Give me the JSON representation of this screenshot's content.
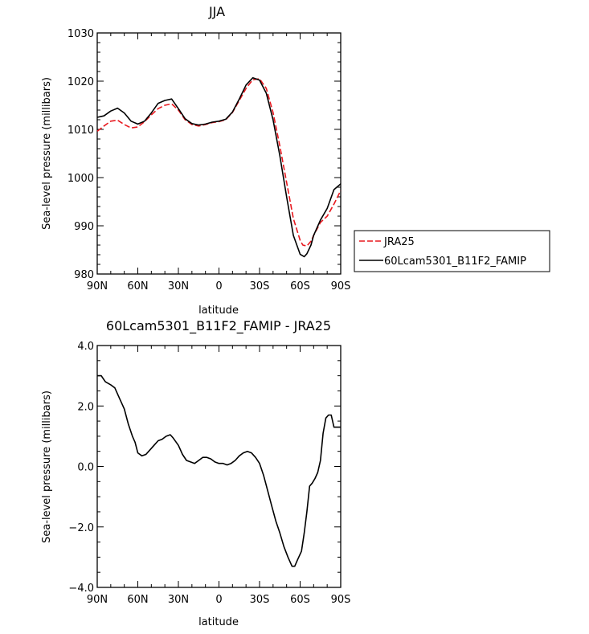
{
  "chart_data": [
    {
      "type": "line",
      "title": "JJA",
      "xlabel": "latitude",
      "ylabel": "Sea-level pressure (millibars)",
      "ylim": [
        980,
        1030
      ],
      "yticks": [
        980,
        990,
        1000,
        1010,
        1020,
        1030
      ],
      "ytick_labels": [
        "980",
        "990",
        "1000",
        "1010",
        "1020",
        "1030"
      ],
      "xlim": [
        90,
        -90
      ],
      "xticks": [
        90,
        60,
        30,
        0,
        -30,
        -60,
        -90
      ],
      "xtick_labels": [
        "90N",
        "60N",
        "30N",
        "0",
        "30S",
        "60S",
        "90S"
      ],
      "legend_position": "outside-right",
      "series": [
        {
          "name": "JRA25",
          "color": "#e8191f",
          "dash": "dashed",
          "x": [
            90,
            85,
            80,
            75,
            70,
            65,
            60,
            55,
            50,
            45,
            40,
            35,
            30,
            25,
            20,
            15,
            10,
            5,
            0,
            -5,
            -10,
            -15,
            -20,
            -25,
            -30,
            -35,
            -40,
            -45,
            -50,
            -55,
            -60,
            -62,
            -65,
            -68,
            -70,
            -75,
            -80,
            -85,
            -90
          ],
          "y": [
            1009.6,
            1010.7,
            1011.7,
            1011.9,
            1011.0,
            1010.3,
            1010.5,
            1011.6,
            1013.0,
            1014.3,
            1015.0,
            1015.3,
            1014.0,
            1012.0,
            1011.0,
            1010.7,
            1011.0,
            1011.4,
            1011.6,
            1012.0,
            1013.5,
            1016.0,
            1018.5,
            1020.3,
            1020.5,
            1018.5,
            1013.5,
            1006.5,
            999.0,
            991.5,
            987.0,
            986.0,
            985.8,
            986.8,
            988.0,
            990.7,
            992.0,
            994.5,
            997.3
          ]
        },
        {
          "name": "60Lcam5301_B11F2_FAMIP",
          "color": "#000000",
          "dash": "solid",
          "x": [
            90,
            85,
            80,
            75,
            70,
            65,
            60,
            55,
            50,
            45,
            40,
            35,
            30,
            25,
            20,
            15,
            10,
            5,
            0,
            -5,
            -10,
            -15,
            -20,
            -25,
            -30,
            -35,
            -40,
            -45,
            -50,
            -55,
            -60,
            -63,
            -65,
            -68,
            -70,
            -75,
            -80,
            -85,
            -90
          ],
          "y": [
            1012.5,
            1012.8,
            1013.8,
            1014.4,
            1013.4,
            1011.7,
            1011.1,
            1011.7,
            1013.4,
            1015.4,
            1016.0,
            1016.3,
            1014.3,
            1012.2,
            1011.2,
            1010.9,
            1011.1,
            1011.5,
            1011.7,
            1012.1,
            1013.6,
            1016.3,
            1019.2,
            1020.7,
            1020.2,
            1017.5,
            1012.0,
            1004.5,
            996.0,
            988.0,
            984.1,
            983.6,
            984.2,
            986.0,
            988.0,
            991.2,
            993.6,
            997.5,
            998.7
          ]
        }
      ]
    },
    {
      "type": "line",
      "title": "60Lcam5301_B11F2_FAMIP - JRA25",
      "xlabel": "latitude",
      "ylabel": "Sea-level pressure (millibars)",
      "ylim": [
        -4.0,
        4.0
      ],
      "yticks": [
        -4,
        -2,
        0,
        2,
        4
      ],
      "ytick_labels": [
        "−4.0",
        "−2.0",
        "0.0",
        "2.0",
        "4.0"
      ],
      "xlim": [
        90,
        -90
      ],
      "xticks": [
        90,
        60,
        30,
        0,
        -30,
        -60,
        -90
      ],
      "xtick_labels": [
        "90N",
        "60N",
        "30N",
        "0",
        "30S",
        "60S",
        "90S"
      ],
      "series": [
        {
          "color": "#000000",
          "dash": "solid",
          "x": [
            90,
            87,
            84,
            80,
            77,
            73,
            70,
            67,
            64,
            62,
            60,
            57,
            54,
            51,
            48,
            45,
            42,
            39,
            36,
            34,
            30,
            27,
            24,
            21,
            18,
            15,
            12,
            9,
            6,
            3,
            0,
            -3,
            -6,
            -9,
            -12,
            -15,
            -18,
            -21,
            -24,
            -27,
            -30,
            -33,
            -36,
            -39,
            -42,
            -45,
            -48,
            -51,
            -54,
            -56,
            -58,
            -61,
            -63,
            -65,
            -67,
            -69,
            -71,
            -73,
            -75,
            -77,
            -79,
            -81,
            -83,
            -85,
            -87,
            -89,
            -90
          ],
          "y": [
            3.0,
            3.0,
            2.8,
            2.7,
            2.6,
            2.2,
            1.9,
            1.4,
            1.0,
            0.8,
            0.45,
            0.35,
            0.4,
            0.55,
            0.7,
            0.85,
            0.9,
            1.0,
            1.05,
            0.95,
            0.7,
            0.4,
            0.2,
            0.15,
            0.1,
            0.2,
            0.3,
            0.3,
            0.25,
            0.15,
            0.1,
            0.1,
            0.05,
            0.1,
            0.2,
            0.35,
            0.45,
            0.5,
            0.45,
            0.3,
            0.1,
            -0.3,
            -0.8,
            -1.3,
            -1.8,
            -2.2,
            -2.65,
            -3.0,
            -3.3,
            -3.3,
            -3.1,
            -2.8,
            -2.2,
            -1.5,
            -0.65,
            -0.55,
            -0.4,
            -0.2,
            0.2,
            1.1,
            1.6,
            1.7,
            1.7,
            1.3,
            1.3,
            1.3,
            1.3
          ]
        }
      ]
    }
  ]
}
